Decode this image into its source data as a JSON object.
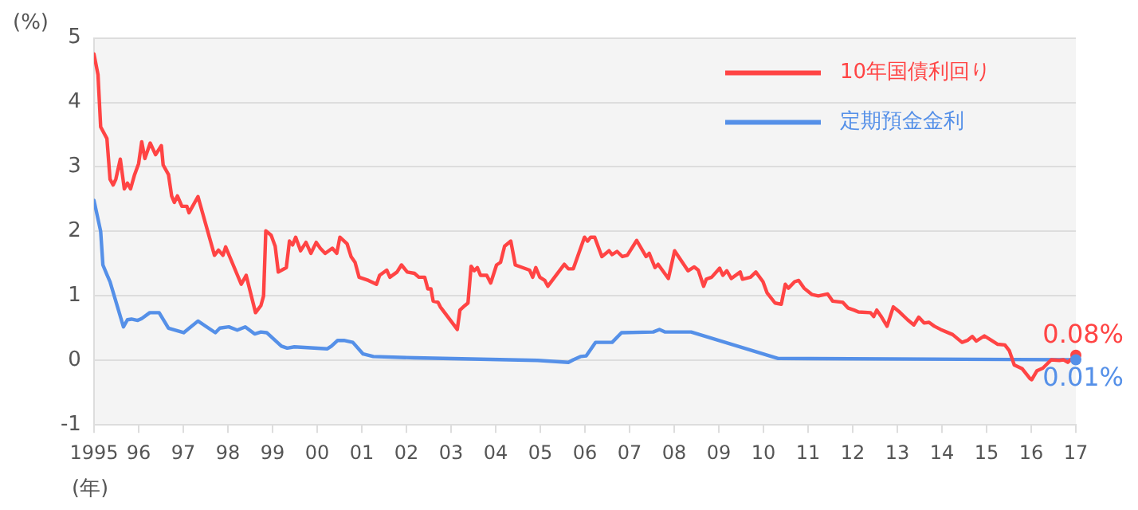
{
  "chart_data": {
    "type": "line",
    "ylabel": "(%)",
    "xlabel": "(年)",
    "xlim": [
      1995,
      2017
    ],
    "xticks": [
      {
        "value": 1995,
        "label": "1995"
      },
      {
        "value": 1996,
        "label": "96"
      },
      {
        "value": 1997,
        "label": "97"
      },
      {
        "value": 1998,
        "label": "98"
      },
      {
        "value": 1999,
        "label": "99"
      },
      {
        "value": 2000,
        "label": "00"
      },
      {
        "value": 2001,
        "label": "01"
      },
      {
        "value": 2002,
        "label": "02"
      },
      {
        "value": 2003,
        "label": "03"
      },
      {
        "value": 2004,
        "label": "04"
      },
      {
        "value": 2005,
        "label": "05"
      },
      {
        "value": 2006,
        "label": "06"
      },
      {
        "value": 2007,
        "label": "07"
      },
      {
        "value": 2008,
        "label": "08"
      },
      {
        "value": 2009,
        "label": "09"
      },
      {
        "value": 2010,
        "label": "10"
      },
      {
        "value": 2011,
        "label": "11"
      },
      {
        "value": 2012,
        "label": "12"
      },
      {
        "value": 2013,
        "label": "13"
      },
      {
        "value": 2014,
        "label": "14"
      },
      {
        "value": 2015,
        "label": "15"
      },
      {
        "value": 2016,
        "label": "16"
      },
      {
        "value": 2017,
        "label": "17"
      }
    ],
    "ylim": [
      -1,
      5
    ],
    "yticks": [
      -1,
      0,
      1,
      2,
      3,
      4,
      5
    ],
    "grid": "y",
    "legend": "top right",
    "marker": "none",
    "line_style": "solid",
    "series": [
      {
        "name": "10年国債利回り",
        "color": "#ff4444",
        "x": [
          1995.0,
          1995.09,
          1995.15,
          1995.29,
          1995.36,
          1995.43,
          1995.49,
          1995.59,
          1995.68,
          1995.75,
          1995.82,
          1995.91,
          1996.0,
          1996.07,
          1996.14,
          1996.26,
          1996.38,
          1996.51,
          1996.55,
          1996.67,
          1996.74,
          1996.8,
          1996.87,
          1996.97,
          1997.08,
          1997.13,
          1997.33,
          1997.7,
          1997.79,
          1997.89,
          1997.95,
          1998.3,
          1998.41,
          1998.62,
          1998.74,
          1998.8,
          1998.85,
          1998.97,
          1999.06,
          1999.13,
          1999.31,
          1999.38,
          1999.45,
          1999.52,
          1999.63,
          1999.75,
          1999.86,
          1999.98,
          2000.07,
          2000.18,
          2000.34,
          2000.44,
          2000.51,
          2000.67,
          2000.76,
          2000.85,
          2000.94,
          2001.15,
          2001.33,
          2001.4,
          2001.56,
          2001.63,
          2001.79,
          2001.89,
          2002.02,
          2002.18,
          2002.28,
          2002.41,
          2002.48,
          2002.55,
          2002.6,
          2002.71,
          2002.76,
          2003.14,
          2003.2,
          2003.31,
          2003.38,
          2003.45,
          2003.52,
          2003.59,
          2003.66,
          2003.8,
          2003.89,
          2004.02,
          2004.11,
          2004.2,
          2004.34,
          2004.44,
          2004.6,
          2004.76,
          2004.83,
          2004.9,
          2004.99,
          2005.1,
          2005.17,
          2005.54,
          2005.63,
          2005.74,
          2005.99,
          2006.06,
          2006.13,
          2006.22,
          2006.38,
          2006.54,
          2006.61,
          2006.72,
          2006.84,
          2006.95,
          2007.16,
          2007.37,
          2007.44,
          2007.57,
          2007.64,
          2007.87,
          2008.01,
          2008.31,
          2008.45,
          2008.54,
          2008.66,
          2008.72,
          2008.84,
          2009.02,
          2009.09,
          2009.18,
          2009.28,
          2009.48,
          2009.53,
          2009.71,
          2009.83,
          2009.99,
          2010.08,
          2010.26,
          2010.4,
          2010.49,
          2010.56,
          2010.7,
          2010.79,
          2010.91,
          2011.09,
          2011.23,
          2011.44,
          2011.55,
          2011.78,
          2011.9,
          2012.03,
          2012.13,
          2012.4,
          2012.47,
          2012.54,
          2012.63,
          2012.77,
          2012.91,
          2013.05,
          2013.23,
          2013.37,
          2013.48,
          2013.6,
          2013.71,
          2013.83,
          2013.97,
          2014.24,
          2014.45,
          2014.57,
          2014.68,
          2014.77,
          2014.95,
          2015.11,
          2015.25,
          2015.41,
          2015.51,
          2015.62,
          2015.8,
          2015.97,
          2016.01,
          2016.13,
          2016.26,
          2016.45,
          2016.63,
          2016.72,
          2016.82,
          2017.0
        ],
        "values": [
          4.75,
          4.43,
          3.62,
          3.44,
          2.81,
          2.72,
          2.81,
          3.12,
          2.66,
          2.75,
          2.66,
          2.88,
          3.05,
          3.39,
          3.13,
          3.37,
          3.19,
          3.33,
          3.03,
          2.88,
          2.55,
          2.45,
          2.55,
          2.39,
          2.39,
          2.29,
          2.54,
          1.63,
          1.71,
          1.63,
          1.76,
          1.18,
          1.32,
          0.74,
          0.85,
          1.0,
          2.01,
          1.94,
          1.77,
          1.37,
          1.44,
          1.85,
          1.79,
          1.91,
          1.7,
          1.83,
          1.66,
          1.83,
          1.74,
          1.66,
          1.74,
          1.66,
          1.91,
          1.81,
          1.61,
          1.52,
          1.29,
          1.24,
          1.18,
          1.32,
          1.4,
          1.29,
          1.37,
          1.48,
          1.37,
          1.35,
          1.29,
          1.29,
          1.11,
          1.11,
          0.92,
          0.9,
          0.83,
          0.48,
          0.78,
          0.85,
          0.89,
          1.46,
          1.39,
          1.44,
          1.32,
          1.32,
          1.2,
          1.48,
          1.52,
          1.77,
          1.85,
          1.48,
          1.44,
          1.4,
          1.29,
          1.44,
          1.29,
          1.24,
          1.15,
          1.49,
          1.42,
          1.42,
          1.91,
          1.85,
          1.91,
          1.91,
          1.61,
          1.7,
          1.64,
          1.69,
          1.61,
          1.63,
          1.86,
          1.61,
          1.66,
          1.44,
          1.49,
          1.27,
          1.7,
          1.39,
          1.45,
          1.4,
          1.15,
          1.26,
          1.29,
          1.43,
          1.32,
          1.39,
          1.27,
          1.37,
          1.26,
          1.29,
          1.37,
          1.22,
          1.05,
          0.89,
          0.87,
          1.18,
          1.12,
          1.22,
          1.24,
          1.12,
          1.02,
          1.0,
          1.03,
          0.92,
          0.9,
          0.81,
          0.78,
          0.75,
          0.74,
          0.68,
          0.78,
          0.69,
          0.53,
          0.83,
          0.75,
          0.63,
          0.55,
          0.67,
          0.58,
          0.59,
          0.53,
          0.48,
          0.4,
          0.28,
          0.31,
          0.37,
          0.3,
          0.38,
          0.31,
          0.25,
          0.24,
          0.15,
          -0.07,
          -0.13,
          -0.28,
          -0.3,
          -0.16,
          -0.12,
          0.01,
          0.0,
          0.01,
          -0.03,
          0.08
        ]
      },
      {
        "name": "定期預金金利",
        "color": "#5590e8",
        "x": [
          1995.0,
          1995.15,
          1995.2,
          1995.29,
          1995.36,
          1995.66,
          1995.75,
          1995.84,
          1995.98,
          1996.07,
          1996.25,
          1996.46,
          1996.67,
          1997.01,
          1997.33,
          1997.72,
          1997.82,
          1998.02,
          1998.21,
          1998.39,
          1998.6,
          1998.74,
          1998.87,
          1999.2,
          1999.33,
          1999.49,
          2000.23,
          2000.32,
          2000.46,
          2000.6,
          2000.8,
          2001.03,
          2001.26,
          2002.18,
          2004.94,
          2005.63,
          2005.74,
          2005.9,
          2006.03,
          2006.24,
          2006.61,
          2006.82,
          2007.53,
          2007.67,
          2007.8,
          2008.38,
          2010.33,
          2017.0
        ],
        "values": [
          2.48,
          2.0,
          1.48,
          1.33,
          1.22,
          0.52,
          0.63,
          0.64,
          0.62,
          0.65,
          0.74,
          0.74,
          0.5,
          0.43,
          0.61,
          0.43,
          0.5,
          0.52,
          0.47,
          0.52,
          0.41,
          0.44,
          0.43,
          0.22,
          0.19,
          0.21,
          0.18,
          0.22,
          0.31,
          0.31,
          0.28,
          0.1,
          0.06,
          0.04,
          0.0,
          -0.03,
          0.01,
          0.06,
          0.07,
          0.28,
          0.28,
          0.43,
          0.44,
          0.48,
          0.44,
          0.44,
          0.03,
          0.01
        ]
      }
    ],
    "annotations": [
      {
        "text": "0.08%",
        "x": 2017,
        "y": 0.08
      },
      {
        "text": "0.01%",
        "x": 2017,
        "y": 0.01
      }
    ]
  }
}
